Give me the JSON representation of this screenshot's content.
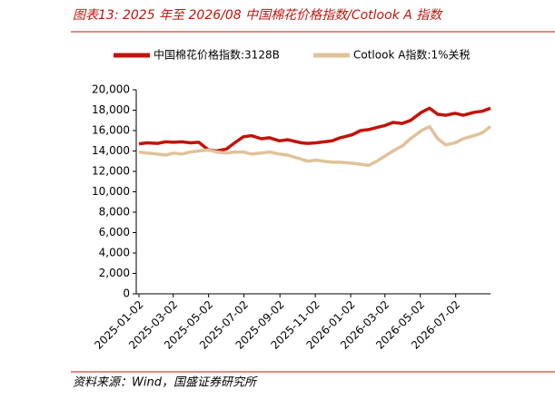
{
  "chart_data": {
    "type": "line",
    "title": "图表13:  2025 年至 2026/08 中国棉花价格指数/Cotlook A 指数",
    "source": "资料来源：Wind，国盛证券研究所",
    "x": [
      "2025-01-02",
      "2025-01-16",
      "2025-02-03",
      "2025-02-17",
      "2025-03-03",
      "2025-03-17",
      "2025-04-01",
      "2025-04-15",
      "2025-05-02",
      "2025-05-16",
      "2025-06-02",
      "2025-06-16",
      "2025-07-01",
      "2025-07-15",
      "2025-08-01",
      "2025-08-15",
      "2025-09-01",
      "2025-09-15",
      "2025-10-09",
      "2025-10-20",
      "2025-11-03",
      "2025-11-17",
      "2025-12-01",
      "2025-12-15",
      "2026-01-05",
      "2026-01-19",
      "2026-02-02",
      "2026-02-16",
      "2026-03-02",
      "2026-03-16",
      "2026-04-01",
      "2026-04-15",
      "2026-05-04",
      "2026-05-18",
      "2026-06-01",
      "2026-06-15",
      "2026-07-01",
      "2026-07-15",
      "2026-08-03",
      "2026-08-17",
      "2026-08-31"
    ],
    "series": [
      {
        "name": "中国棉花价格指数:3128B",
        "color": "#c0140c",
        "values": [
          14700,
          14800,
          14750,
          14900,
          14850,
          14900,
          14800,
          14850,
          14100,
          14000,
          14200,
          14800,
          15400,
          15500,
          15200,
          15300,
          15000,
          15100,
          14800,
          14750,
          14800,
          14900,
          15000,
          15300,
          15600,
          16000,
          16100,
          16300,
          16500,
          16800,
          16700,
          17000,
          17800,
          18200,
          17600,
          17500,
          17700,
          17500,
          17800,
          17900,
          18200
        ]
      },
      {
        "name": "Cotlook A指数:1%关税",
        "color": "#e0c29a",
        "values": [
          13900,
          13800,
          13700,
          13600,
          13800,
          13700,
          13900,
          14000,
          14100,
          13900,
          13800,
          13900,
          13900,
          13700,
          13800,
          13900,
          13700,
          13600,
          13200,
          13000,
          13100,
          13000,
          12900,
          12900,
          12800,
          12700,
          12600,
          13000,
          13500,
          14000,
          14500,
          15200,
          16000,
          16400,
          15200,
          14600,
          14800,
          15200,
          15500,
          15800,
          16400
        ]
      }
    ],
    "xlim": [
      "2025-01-02",
      "2026-08-31"
    ],
    "xticks": [
      "2025-01-02",
      "2025-03-02",
      "2025-05-02",
      "2025-07-02",
      "2025-09-02",
      "2025-11-02",
      "2026-01-02",
      "2026-03-02",
      "2026-05-02",
      "2026-07-02"
    ],
    "ylim": [
      0,
      20000
    ],
    "yticks": [
      0,
      {
        "value": 2000,
        "label": "2,000"
      },
      {
        "value": 4000,
        "label": "4,000"
      },
      {
        "value": 6000,
        "label": "6,000"
      },
      {
        "value": 8000,
        "label": "8,000"
      },
      {
        "value": 10000,
        "label": "10,000"
      },
      {
        "value": 12000,
        "label": "12,000"
      },
      {
        "value": 14000,
        "label": "14,000"
      },
      {
        "value": 16000,
        "label": "16,000"
      },
      {
        "value": 18000,
        "label": "18,000"
      },
      {
        "value": 20000,
        "label": "20,000"
      }
    ],
    "legend": "top"
  }
}
